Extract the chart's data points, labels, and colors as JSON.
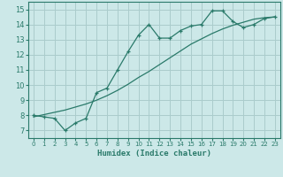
{
  "xlabel": "Humidex (Indice chaleur)",
  "ylabel": "",
  "bg_color": "#cce8e8",
  "grid_color": "#aacccc",
  "line_color": "#2a7a6a",
  "xlim": [
    -0.5,
    23.5
  ],
  "ylim": [
    6.5,
    15.5
  ],
  "xticks": [
    0,
    1,
    2,
    3,
    4,
    5,
    6,
    7,
    8,
    9,
    10,
    11,
    12,
    13,
    14,
    15,
    16,
    17,
    18,
    19,
    20,
    21,
    22,
    23
  ],
  "yticks": [
    7,
    8,
    9,
    10,
    11,
    12,
    13,
    14,
    15
  ],
  "line1_x": [
    0,
    1,
    2,
    3,
    4,
    5,
    6,
    7,
    8,
    9,
    10,
    11,
    12,
    13,
    14,
    15,
    16,
    17,
    18,
    19,
    20,
    21,
    22,
    23
  ],
  "line1_y": [
    8.0,
    7.9,
    7.8,
    7.0,
    7.5,
    7.8,
    9.5,
    9.8,
    11.0,
    12.2,
    13.3,
    14.0,
    13.1,
    13.1,
    13.6,
    13.9,
    14.0,
    14.9,
    14.9,
    14.2,
    13.8,
    14.0,
    14.4,
    14.5
  ],
  "line2_x": [
    0,
    1,
    2,
    3,
    4,
    5,
    6,
    7,
    8,
    9,
    10,
    11,
    12,
    13,
    14,
    15,
    16,
    17,
    18,
    19,
    20,
    21,
    22,
    23
  ],
  "line2_y": [
    7.9,
    8.05,
    8.2,
    8.35,
    8.55,
    8.75,
    9.0,
    9.3,
    9.65,
    10.05,
    10.5,
    10.9,
    11.35,
    11.8,
    12.25,
    12.7,
    13.05,
    13.4,
    13.7,
    13.95,
    14.15,
    14.35,
    14.45,
    14.5
  ]
}
